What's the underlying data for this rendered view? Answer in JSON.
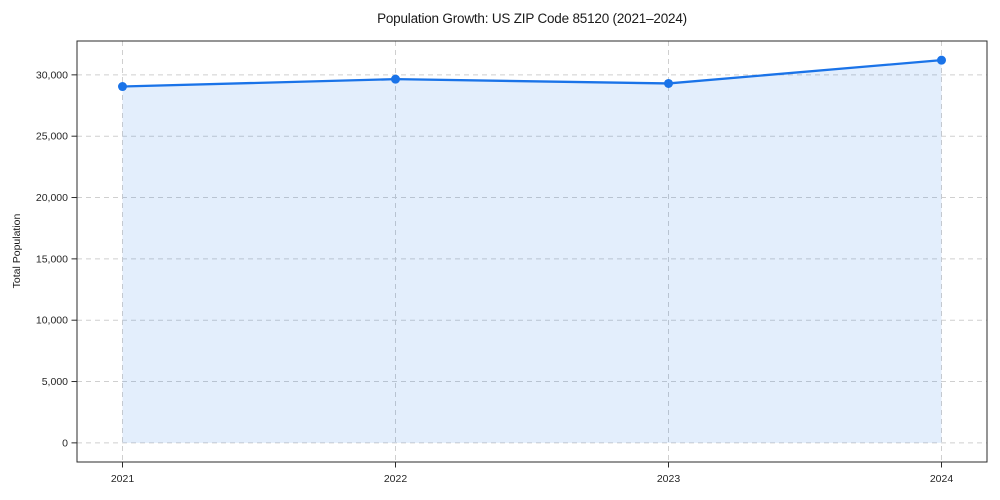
{
  "chart_data": {
    "type": "area",
    "title": "Population Growth: US ZIP Code 85120 (2021–2024)",
    "xlabel": "",
    "ylabel": "Total Population",
    "categories": [
      "2021",
      "2022",
      "2023",
      "2024"
    ],
    "series": [
      {
        "name": "Total Population",
        "values": [
          29050,
          29650,
          29300,
          31200
        ]
      }
    ],
    "ylim": [
      -1560,
      32760
    ],
    "yticks": [
      0,
      5000,
      10000,
      15000,
      20000,
      25000,
      30000
    ],
    "ytick_labels": [
      "0",
      "5,000",
      "10,000",
      "15,000",
      "20,000",
      "25,000",
      "30,000"
    ],
    "grid": true,
    "grid_style": "dashed",
    "legend_position": "none",
    "colors": {
      "line": "#1a73e8",
      "marker": "#1a73e8",
      "fill": "#1a73e8",
      "fill_opacity": 0.12,
      "grid": "#cfcfcf",
      "axis": "#2b2b2b",
      "text": "#262626",
      "background": "#ffffff"
    }
  }
}
